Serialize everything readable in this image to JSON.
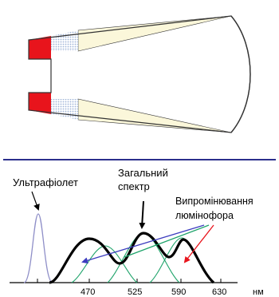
{
  "colors": {
    "led_red": "#e8141c",
    "phosphor_dots": "#9fb4d8",
    "cone_fill": "#fbf7da",
    "separator": "#2b2f8c",
    "spectrum_total": "#000000",
    "spectrum_uv": "#8f8fc8",
    "spectrum_phosphor": "#1ea36a",
    "arrow_red": "#e8141c",
    "arrow_green": "#1ea36a",
    "arrow_blue": "#3d3dbf"
  },
  "labels": {
    "ultraviolet": "Ультрафіолет",
    "total_line1": "Загальний",
    "total_line2": "спектр",
    "phosphor_line1": "Випромінювання",
    "phosphor_line2": "люмінофора",
    "unit": "нм"
  },
  "ticks": [
    "470",
    "525",
    "590",
    "630"
  ]
}
